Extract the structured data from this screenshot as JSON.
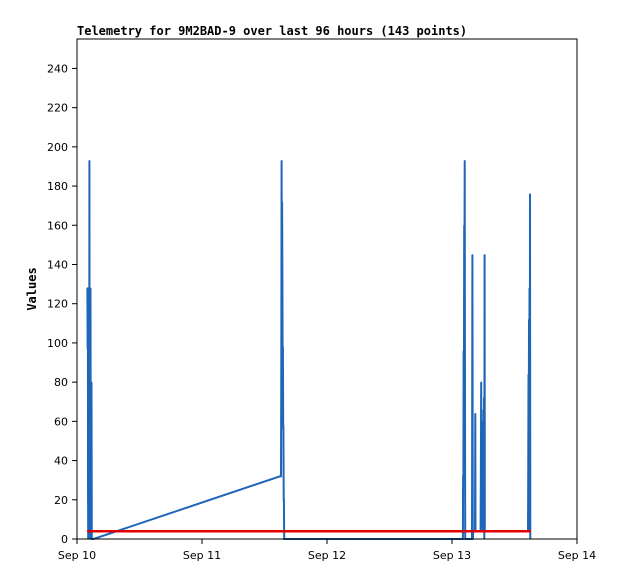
{
  "chart_data": {
    "type": "line",
    "title": "Telemetry for 9M2BAD-9 over last 96 hours (143 points)",
    "xlabel": "",
    "ylabel": "Values",
    "x_tick_labels": [
      "Sep 10",
      "Sep 11",
      "Sep 12",
      "Sep 13",
      "Sep 14"
    ],
    "xlim": [
      "Sep 10 00:00",
      "Sep 14 00:00"
    ],
    "y_ticks": [
      0,
      20,
      40,
      60,
      80,
      100,
      120,
      140,
      160,
      180,
      200,
      220,
      240
    ],
    "ylim": [
      0,
      255
    ],
    "grid": false,
    "legend": "none",
    "series": [
      {
        "color": "#1f66b8",
        "points": [
          [
            "Sep 10 02:00",
            128
          ],
          [
            "Sep 10 02:02",
            97
          ],
          [
            "Sep 10 02:05",
            128
          ],
          [
            "Sep 10 02:07",
            32
          ],
          [
            "Sep 10 02:09",
            0
          ],
          [
            "Sep 10 02:12",
            32
          ],
          [
            "Sep 10 02:14",
            1
          ],
          [
            "Sep 10 02:17",
            2
          ],
          [
            "Sep 10 02:20",
            1
          ],
          [
            "Sep 10 02:23",
            193
          ],
          [
            "Sep 10 02:25",
            0
          ],
          [
            "Sep 10 02:28",
            1
          ],
          [
            "Sep 10 02:30",
            128
          ],
          [
            "Sep 10 02:33",
            0
          ],
          [
            "Sep 10 02:36",
            128
          ],
          [
            "Sep 10 02:39",
            1
          ],
          [
            "Sep 10 02:42",
            0
          ],
          [
            "Sep 10 02:45",
            1
          ],
          [
            "Sep 10 02:47",
            80
          ],
          [
            "Sep 10 02:50",
            0
          ],
          [
            "Sep 10 03:10",
            0
          ],
          [
            "Sep 11 15:00",
            32
          ],
          [
            "Sep 11 15:10",
            32
          ],
          [
            "Sep 11 15:14",
            88
          ],
          [
            "Sep 11 15:17",
            193
          ],
          [
            "Sep 11 15:20",
            100
          ],
          [
            "Sep 11 15:23",
            172
          ],
          [
            "Sep 11 15:26",
            134
          ],
          [
            "Sep 11 15:29",
            96
          ],
          [
            "Sep 11 15:32",
            98
          ],
          [
            "Sep 11 15:35",
            56
          ],
          [
            "Sep 11 15:38",
            58
          ],
          [
            "Sep 11 15:41",
            20
          ],
          [
            "Sep 11 15:44",
            20
          ],
          [
            "Sep 11 15:47",
            0
          ],
          [
            "Sep 13 02:05",
            0
          ],
          [
            "Sep 13 02:08",
            32
          ],
          [
            "Sep 13 02:11",
            32
          ],
          [
            "Sep 13 02:14",
            96
          ],
          [
            "Sep 13 02:17",
            64
          ],
          [
            "Sep 13 02:20",
            160
          ],
          [
            "Sep 13 02:23",
            120
          ],
          [
            "Sep 13 02:26",
            193
          ],
          [
            "Sep 13 02:29",
            112
          ],
          [
            "Sep 13 02:32",
            0
          ],
          [
            "Sep 13 02:35",
            0
          ],
          [
            "Sep 13 03:50",
            0
          ],
          [
            "Sep 13 03:55",
            145
          ],
          [
            "Sep 13 04:00",
            0
          ],
          [
            "Sep 13 04:05",
            4
          ],
          [
            "Sep 13 04:25",
            4
          ],
          [
            "Sep 13 04:28",
            64
          ],
          [
            "Sep 13 04:31",
            4
          ],
          [
            "Sep 13 05:30",
            4
          ],
          [
            "Sep 13 05:33",
            40
          ],
          [
            "Sep 13 05:36",
            80
          ],
          [
            "Sep 13 05:39",
            40
          ],
          [
            "Sep 13 05:42",
            66
          ],
          [
            "Sep 13 05:45",
            16
          ],
          [
            "Sep 13 05:48",
            60
          ],
          [
            "Sep 13 05:51",
            12
          ],
          [
            "Sep 13 05:54",
            4
          ],
          [
            "Sep 13 05:57",
            16
          ],
          [
            "Sep 13 06:00",
            4
          ],
          [
            "Sep 13 06:03",
            16
          ],
          [
            "Sep 13 06:06",
            4
          ],
          [
            "Sep 13 06:09",
            72
          ],
          [
            "Sep 13 06:12",
            0
          ],
          [
            "Sep 13 06:15",
            145
          ],
          [
            "Sep 13 06:18",
            4
          ],
          [
            "Sep 13 14:35",
            4
          ],
          [
            "Sep 13 14:38",
            28
          ],
          [
            "Sep 13 14:41",
            84
          ],
          [
            "Sep 13 14:44",
            24
          ],
          [
            "Sep 13 14:47",
            112
          ],
          [
            "Sep 13 14:50",
            64
          ],
          [
            "Sep 13 14:53",
            128
          ],
          [
            "Sep 13 14:56",
            4
          ],
          [
            "Sep 13 14:59",
            176
          ],
          [
            "Sep 13 15:02",
            0
          ]
        ]
      },
      {
        "color": "#e00000",
        "points": [
          [
            "Sep 10 02:00",
            4
          ],
          [
            "Sep 13 15:05",
            4
          ]
        ]
      }
    ]
  }
}
